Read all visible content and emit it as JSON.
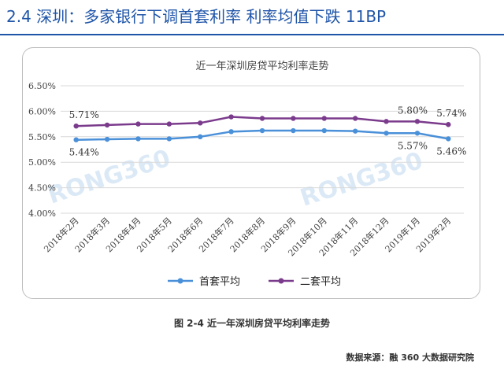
{
  "page": {
    "heading": "2.4 深圳：多家银行下调首套利率 利率均值下跌 11BP",
    "figure_caption": "图 2-4 近一年深圳房贷平均利率走势",
    "source": "数据来源：融 360 大数据研究院",
    "watermark": "RONG360"
  },
  "chart_data": {
    "type": "line",
    "title": "近一年深圳房贷平均利率走势",
    "categories": [
      "2018年2月",
      "2018年3月",
      "2018年4月",
      "2018年5月",
      "2018年6月",
      "2018年7月",
      "2018年8月",
      "2018年9月",
      "2018年10月",
      "2018年11月",
      "2018年12月",
      "2019年1月",
      "2019年2月"
    ],
    "yticks": [
      "4.00%",
      "4.50%",
      "5.00%",
      "5.50%",
      "6.00%",
      "6.50%"
    ],
    "ylim": [
      4.0,
      6.5
    ],
    "grid": "horizontal",
    "legend_position": "bottom",
    "series": [
      {
        "name": "首套平均",
        "color": "#4a90d9",
        "values": [
          5.44,
          5.45,
          5.46,
          5.46,
          5.5,
          5.6,
          5.62,
          5.62,
          5.62,
          5.61,
          5.57,
          5.57,
          5.46
        ],
        "labels": [
          {
            "index": 0,
            "text": "5.44%"
          },
          {
            "index": 11,
            "text": "5.57%"
          },
          {
            "index": 12,
            "text": "5.46%"
          }
        ]
      },
      {
        "name": "二套平均",
        "color": "#7b3b8c",
        "values": [
          5.71,
          5.73,
          5.75,
          5.75,
          5.77,
          5.89,
          5.86,
          5.86,
          5.86,
          5.86,
          5.8,
          5.8,
          5.74
        ],
        "labels": [
          {
            "index": 0,
            "text": "5.71%"
          },
          {
            "index": 11,
            "text": "5.80%"
          },
          {
            "index": 12,
            "text": "5.74%"
          }
        ]
      }
    ]
  }
}
